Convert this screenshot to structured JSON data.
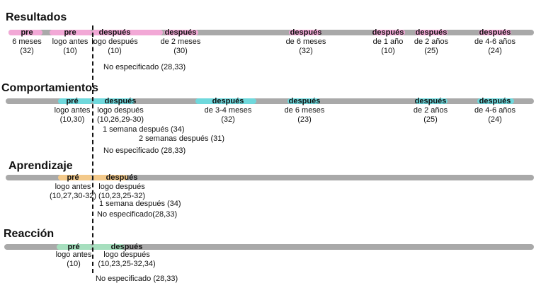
{
  "colors": {
    "bar": "#a9a9a9",
    "resultados": "#f2a8d6",
    "comportamientos": "#6fd8dc",
    "aprendizaje": "#f3c98a",
    "reaccion": "#a6dfbe"
  },
  "sections": [
    {
      "id": "resultados",
      "title": "Resultados",
      "markers": [
        {
          "tag": "pre",
          "lines": [
            "6 meses",
            "(32)"
          ]
        },
        {
          "tag": "pre",
          "lines": [
            "logo antes",
            "(10)"
          ]
        },
        {
          "tag": "después",
          "lines": [
            "logo después",
            "(10)"
          ]
        },
        {
          "tag": "después",
          "lines": [
            "de 2 meses",
            "(30)"
          ]
        },
        {
          "tag": "después",
          "lines": [
            "de 6 meses",
            "(32)"
          ]
        },
        {
          "tag": "después",
          "lines": [
            "de 1 año",
            "(10)"
          ]
        },
        {
          "tag": "después",
          "lines": [
            "de 2 años",
            "(25)"
          ]
        },
        {
          "tag": "después",
          "lines": [
            "de 4-6 años",
            "(24)"
          ]
        }
      ],
      "notes": [
        "No especificado (28,33)"
      ]
    },
    {
      "id": "comportamientos",
      "title": "Comportamientos",
      "markers": [
        {
          "tag": "pré",
          "lines": [
            "logo antes",
            "(10,30)"
          ]
        },
        {
          "tag": "después",
          "lines": [
            "logo después",
            "(10,26,29-30)"
          ]
        },
        {
          "tag": "después",
          "lines": [
            "de 3-4 meses",
            "(32)"
          ]
        },
        {
          "tag": "después",
          "lines": [
            "de 6 meses",
            "(23)"
          ]
        },
        {
          "tag": "después",
          "lines": [
            "de 2 años",
            "(25)"
          ]
        },
        {
          "tag": "después",
          "lines": [
            "de 4-6 años",
            "(24)"
          ]
        }
      ],
      "notes": [
        "1 semana después (34)",
        "2 semanas después (31)",
        "No especificado (28,33)"
      ]
    },
    {
      "id": "aprendizaje",
      "title": "Aprendizaje",
      "markers": [
        {
          "tag": "pré",
          "lines": [
            "logo antes",
            "(10,27,30-32)"
          ]
        },
        {
          "tag": "después",
          "lines": [
            "logo después",
            "(10,23,25-32)"
          ]
        }
      ],
      "notes": [
        "1 semana después (34)",
        "No especificado(28,33)"
      ]
    },
    {
      "id": "reaccion",
      "title": "Reacción",
      "markers": [
        {
          "tag": "pré",
          "lines": [
            "logo antes",
            "(10)"
          ]
        },
        {
          "tag": "después",
          "lines": [
            "logo después",
            "(10,23,25-32,34)"
          ]
        }
      ],
      "notes": [
        "No especificado (28,33)"
      ]
    }
  ]
}
